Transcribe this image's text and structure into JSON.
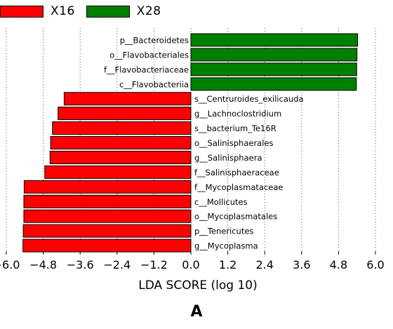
{
  "legend": [
    {
      "label": "X16",
      "color": "#ff0000"
    },
    {
      "label": "X28",
      "color": "#008000"
    }
  ],
  "panel_label": "A",
  "chart_data": {
    "type": "bar",
    "orientation": "horizontal",
    "xlabel": "LDA SCORE (log 10)",
    "xlim": [
      -6.0,
      6.0
    ],
    "xticks": [
      "-6.0",
      "-4.8",
      "-3.6",
      "-2.4",
      "-1.2",
      "0.0",
      "1.2",
      "2.4",
      "3.6",
      "4.8",
      "6.0"
    ],
    "grid": "vertical dotted",
    "bars": [
      {
        "label": "p__Bacteroidetes",
        "value": 5.42,
        "group": "X28"
      },
      {
        "label": "o__Flavobacteriales",
        "value": 5.4,
        "group": "X28"
      },
      {
        "label": "f__Flavobacteriaceae",
        "value": 5.39,
        "group": "X28"
      },
      {
        "label": "c__Flavobacteriia",
        "value": 5.38,
        "group": "X28"
      },
      {
        "label": "s__Centruroides_exilicauda",
        "value": -4.12,
        "group": "X16"
      },
      {
        "label": "g__Lachnoclostridium",
        "value": -4.32,
        "group": "X16"
      },
      {
        "label": "s__bacterium_Te16R",
        "value": -4.5,
        "group": "X16"
      },
      {
        "label": "o__Salinisphaerales",
        "value": -4.56,
        "group": "X16"
      },
      {
        "label": "g__Salinisphaera",
        "value": -4.58,
        "group": "X16"
      },
      {
        "label": "f__Salinisphaeraceae",
        "value": -4.75,
        "group": "X16"
      },
      {
        "label": "f__Mycoplasmataceae",
        "value": -5.42,
        "group": "X16"
      },
      {
        "label": "c__Mollicutes",
        "value": -5.43,
        "group": "X16"
      },
      {
        "label": "o__Mycoplasmatales",
        "value": -5.43,
        "group": "X16"
      },
      {
        "label": "p__Tenericutes",
        "value": -5.45,
        "group": "X16"
      },
      {
        "label": "g__Mycoplasma",
        "value": -5.46,
        "group": "X16"
      }
    ]
  }
}
